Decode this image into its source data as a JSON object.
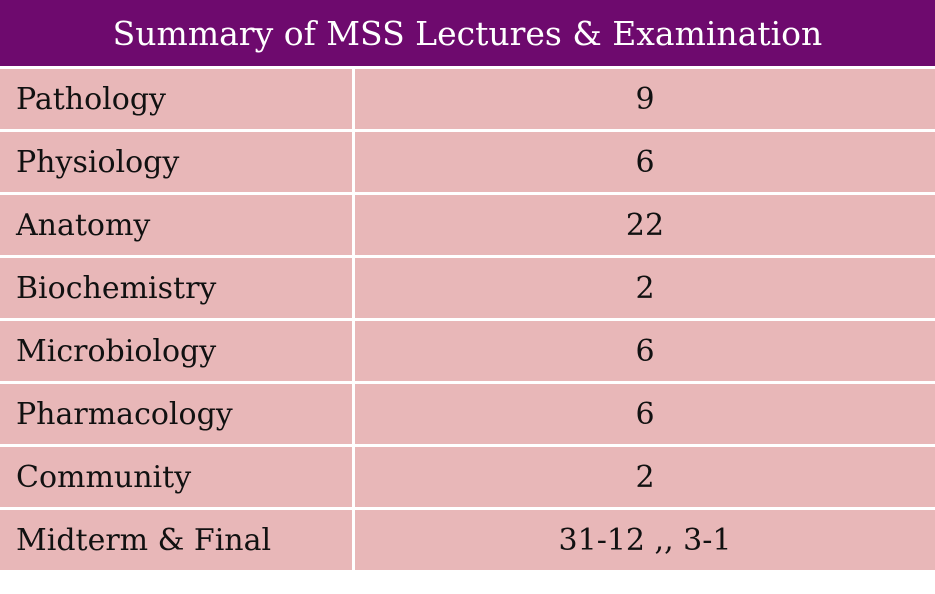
{
  "table": {
    "title": "Summary of MSS Lectures & Examination",
    "rows": [
      {
        "subject": "Pathology",
        "count": "9"
      },
      {
        "subject": "Physiology",
        "count": "6"
      },
      {
        "subject": "Anatomy",
        "count": "22"
      },
      {
        "subject": "Biochemistry",
        "count": "2"
      },
      {
        "subject": "Microbiology",
        "count": "6"
      },
      {
        "subject": "Pharmacology",
        "count": "6"
      },
      {
        "subject": "Community",
        "count": "2"
      },
      {
        "subject": "Midterm & Final",
        "count": "31-12 ,, 3-1"
      }
    ]
  },
  "colors": {
    "header_bg": "#6e0a6e",
    "row_bg": "#e8b7b8",
    "grid_line": "#ffffff"
  }
}
